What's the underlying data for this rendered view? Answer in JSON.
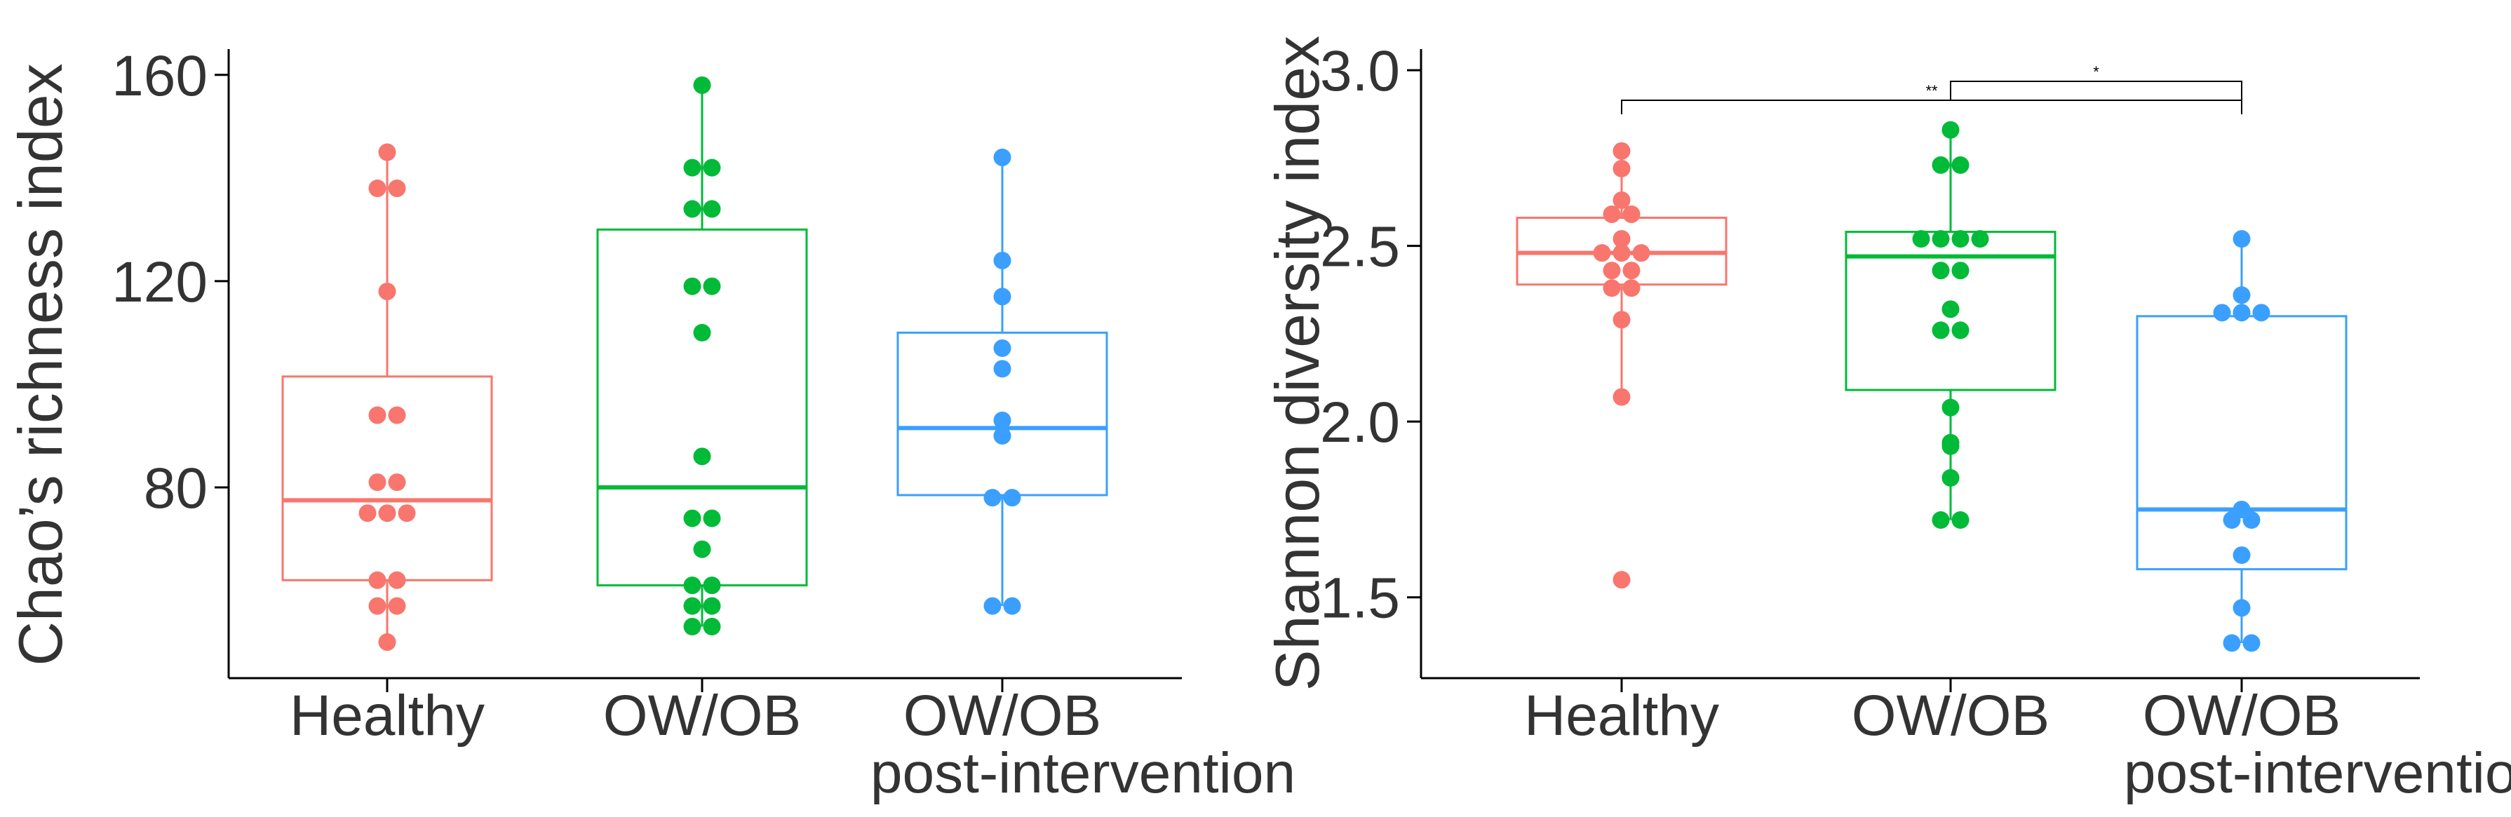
{
  "colors": {
    "healthy": "#F8766D",
    "ow_ob": "#00BA38",
    "post": "#3A9FFF",
    "axis": "#000000",
    "text": "#333333"
  },
  "chart_data": [
    {
      "type": "boxplot",
      "title": "",
      "xlabel": "",
      "ylabel": "Chao’s richness index",
      "ylim": [
        43,
        165
      ],
      "yticks": [
        80,
        120,
        160
      ],
      "ytick_labels": [
        "80",
        "120",
        "160"
      ],
      "categories": [
        "Healthy",
        "OW/OB",
        "OW/OB\npost-intervention"
      ],
      "category_lines": [
        [
          "Healthy"
        ],
        [
          "OW/OB"
        ],
        [
          "OW/OB",
          "post-intervention"
        ]
      ],
      "groups": [
        {
          "name": "Healthy",
          "color": "#F8766D",
          "whisker_low": 50,
          "q1": 62,
          "median": 77.5,
          "q3": 101.5,
          "whisker_high": 145,
          "points": [
            145,
            138,
            138,
            118,
            94,
            94,
            81,
            81,
            75,
            75,
            75,
            62,
            62,
            57,
            57,
            50
          ]
        },
        {
          "name": "OW/OB",
          "color": "#00BA38",
          "whisker_low": 53,
          "q1": 61,
          "median": 80,
          "q3": 130,
          "whisker_high": 158,
          "points": [
            158,
            142,
            142,
            134,
            134,
            119,
            119,
            110,
            86,
            74,
            74,
            68,
            61,
            61,
            57,
            57,
            53,
            53
          ]
        },
        {
          "name": "OW/OB post-intervention",
          "color": "#3A9FFF",
          "whisker_low": 57,
          "q1": 78.5,
          "median": 91.5,
          "q3": 110,
          "whisker_high": 144,
          "points": [
            144,
            124,
            117,
            107,
            103,
            93,
            90,
            78,
            78,
            57,
            57
          ]
        }
      ],
      "annotations": []
    },
    {
      "type": "boxplot",
      "title": "",
      "xlabel": "",
      "ylabel": "Shannon diversity index",
      "ylim": [
        1.27,
        3.06
      ],
      "yticks": [
        1.5,
        2.0,
        2.5,
        3.0
      ],
      "ytick_labels": [
        "1.5",
        "2.0",
        "2.5",
        "3.0"
      ],
      "categories": [
        "Healthy",
        "OW/OB",
        "OW/OB\npost-intervention"
      ],
      "category_lines": [
        [
          "Healthy"
        ],
        [
          "OW/OB"
        ],
        [
          "OW/OB",
          "post-intervention"
        ]
      ],
      "groups": [
        {
          "name": "Healthy",
          "color": "#F8766D",
          "whisker_low": 2.07,
          "q1": 2.39,
          "median": 2.48,
          "q3": 2.58,
          "whisker_high": 2.77,
          "points": [
            2.77,
            2.72,
            2.63,
            2.59,
            2.59,
            2.52,
            2.48,
            2.48,
            2.48,
            2.43,
            2.43,
            2.38,
            2.38,
            2.29,
            2.07,
            1.55
          ]
        },
        {
          "name": "OW/OB",
          "color": "#00BA38",
          "whisker_low": 1.72,
          "q1": 2.09,
          "median": 2.47,
          "q3": 2.54,
          "whisker_high": 2.83,
          "points": [
            2.83,
            2.73,
            2.73,
            2.52,
            2.52,
            2.52,
            2.52,
            2.43,
            2.43,
            2.32,
            2.26,
            2.26,
            2.04,
            1.94,
            1.93,
            1.84,
            1.72,
            1.72
          ]
        },
        {
          "name": "OW/OB post-intervention",
          "color": "#3A9FFF",
          "whisker_low": 1.37,
          "q1": 1.58,
          "median": 1.75,
          "q3": 2.3,
          "whisker_high": 2.52,
          "points": [
            2.52,
            2.36,
            2.31,
            2.31,
            2.31,
            1.75,
            1.72,
            1.72,
            1.62,
            1.47,
            1.37,
            1.37
          ]
        }
      ],
      "annotations": [
        {
          "label": "**",
          "from": "Healthy",
          "to": "OW/OB post-intervention",
          "level": 1
        },
        {
          "label": "*",
          "from": "OW/OB",
          "to": "OW/OB post-intervention",
          "level": 2
        }
      ]
    }
  ]
}
